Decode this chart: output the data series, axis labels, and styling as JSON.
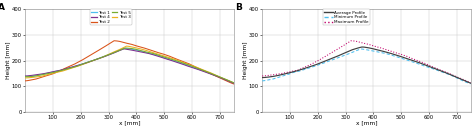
{
  "xlim": [
    0,
    750
  ],
  "ylim": [
    0,
    400
  ],
  "xticks": [
    100,
    200,
    300,
    400,
    500,
    600,
    700
  ],
  "yticks": [
    0,
    100,
    200,
    300,
    400
  ],
  "xlabel": "x [mm]",
  "ylabel": "Height [mm]",
  "panel_A_label": "A",
  "panel_B_label": "B",
  "test_colors": {
    "Test 1": "#4DBEEE",
    "Test 2": "#D95319",
    "Test 3": "#EDB120",
    "Test 4": "#7E2F8E",
    "Test 5": "#77AC30"
  },
  "profile_colors": {
    "Average Profile": "#404040",
    "Minimum Profile": "#4DBEEE",
    "Maximum Profile": "#C0006A"
  },
  "background_color": "#ffffff",
  "grid_color": "#cccccc",
  "figsize": [
    4.74,
    1.29
  ],
  "dpi": 100
}
